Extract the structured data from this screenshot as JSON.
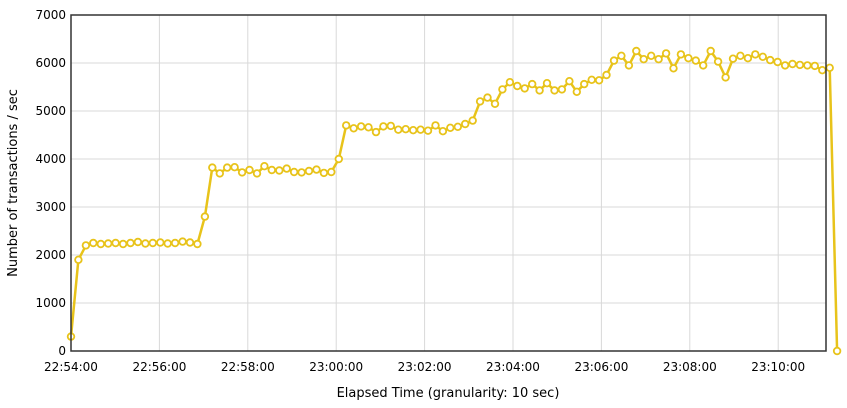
{
  "chart_data": {
    "type": "line",
    "title": "",
    "xlabel": "Elapsed Time (granularity: 10 sec)",
    "ylabel": "Number of transactions / sec",
    "ylim": [
      0,
      7000
    ],
    "y_ticks": [
      0,
      1000,
      2000,
      3000,
      4000,
      5000,
      6000,
      7000
    ],
    "x_ticks": [
      "22:54:00",
      "22:56:00",
      "22:58:00",
      "23:00:00",
      "23:02:00",
      "23:04:00",
      "23:06:00",
      "23:08:00",
      "23:10:00"
    ],
    "x_start": "22:54:00",
    "x_end": "23:11:20",
    "granularity_seconds": 10,
    "grid": true,
    "legend": "none",
    "colors": {
      "line": "#e8c31a",
      "marker_fill": "#ffffff",
      "frame": "#333333",
      "grid": "#d9d9d9"
    },
    "series": [
      {
        "values": [
          300,
          1900,
          2200,
          2250,
          2230,
          2240,
          2250,
          2230,
          2250,
          2270,
          2240,
          2250,
          2260,
          2240,
          2250,
          2280,
          2260,
          2230,
          2800,
          3820,
          3700,
          3820,
          3830,
          3720,
          3770,
          3700,
          3850,
          3770,
          3760,
          3800,
          3730,
          3720,
          3750,
          3780,
          3710,
          3730,
          4000,
          4700,
          4640,
          4680,
          4660,
          4560,
          4680,
          4690,
          4610,
          4620,
          4600,
          4610,
          4590,
          4700,
          4580,
          4650,
          4670,
          4730,
          4800,
          5200,
          5280,
          5150,
          5450,
          5600,
          5520,
          5470,
          5560,
          5430,
          5580,
          5430,
          5450,
          5620,
          5400,
          5560,
          5650,
          5640,
          5750,
          6050,
          6150,
          5950,
          6250,
          6080,
          6150,
          6080,
          6200,
          5890,
          6180,
          6100,
          6050,
          5950,
          6250,
          6030,
          5700,
          6090,
          6150,
          6100,
          6180,
          6130,
          6060,
          6020,
          5950,
          5980,
          5960,
          5950,
          5940,
          5850,
          5900,
          0
        ]
      }
    ]
  }
}
